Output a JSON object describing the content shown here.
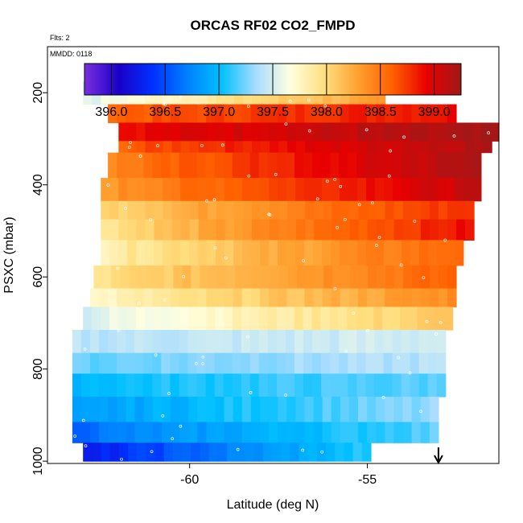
{
  "chart_data": {
    "type": "heatmap",
    "title": "ORCAS RF02 CO2_FMPD",
    "flights_note": "Flts: 2",
    "date_note": "MMDD: 0118",
    "xlabel": "Latitude (deg N)",
    "ylabel": "PSXC (mbar)",
    "xlim": [
      -64.0,
      -51.3
    ],
    "ylim": [
      1005,
      100
    ],
    "x_ticks": [
      -60,
      -55
    ],
    "x_tick_labels": [
      "-60",
      "-55"
    ],
    "y_ticks": [
      200,
      400,
      600,
      800,
      1000
    ],
    "y_tick_labels": [
      "200",
      "400",
      "600",
      "800",
      "1000"
    ],
    "colorbar": {
      "min": 395.75,
      "max": 399.25,
      "ticks": [
        396.0,
        396.5,
        397.0,
        397.5,
        398.0,
        398.5,
        399.0
      ],
      "tick_labels": [
        "396.0",
        "396.5",
        "397.0",
        "397.5",
        "398.0",
        "398.5",
        "399.0"
      ],
      "colors": [
        "#7b2fe0",
        "#1a00c8",
        "#0030ff",
        "#0080ff",
        "#00c0ff",
        "#a8dcff",
        "#ffffe0",
        "#ffe080",
        "#ffa030",
        "#ff6000",
        "#e80000",
        "#a01818"
      ]
    },
    "marker_latitude": -53.0,
    "bands": [
      {
        "p_top": 175,
        "p_bot": 200,
        "x_start": -63.0,
        "x_end": -54.5,
        "v_start": 397.4,
        "v_end": 398.3
      },
      {
        "p_top": 200,
        "p_bot": 225,
        "x_start": -63.0,
        "x_end": -54.5,
        "v_start": 397.5,
        "v_end": 398.3
      },
      {
        "p_top": 225,
        "p_bot": 265,
        "x_start": -62.3,
        "x_end": -52.5,
        "v_start": 398.6,
        "v_end": 398.9
      },
      {
        "p_top": 265,
        "p_bot": 305,
        "x_start": -62.0,
        "x_end": -51.3,
        "v_start": 398.9,
        "v_end": 399.2
      },
      {
        "p_top": 305,
        "p_bot": 330,
        "x_start": -62.0,
        "x_end": -51.5,
        "v_start": 398.6,
        "v_end": 399.2
      },
      {
        "p_top": 330,
        "p_bot": 385,
        "x_start": -62.3,
        "x_end": -51.8,
        "v_start": 398.4,
        "v_end": 399.2
      },
      {
        "p_top": 385,
        "p_bot": 435,
        "x_start": -62.5,
        "x_end": -51.8,
        "v_start": 398.3,
        "v_end": 399.1
      },
      {
        "p_top": 435,
        "p_bot": 475,
        "x_start": -62.5,
        "x_end": -52.0,
        "v_start": 398.0,
        "v_end": 398.8
      },
      {
        "p_top": 475,
        "p_bot": 520,
        "x_start": -62.5,
        "x_end": -52.0,
        "v_start": 397.9,
        "v_end": 398.9
      },
      {
        "p_top": 520,
        "p_bot": 575,
        "x_start": -62.5,
        "x_end": -52.3,
        "v_start": 397.8,
        "v_end": 398.6
      },
      {
        "p_top": 575,
        "p_bot": 625,
        "x_start": -62.7,
        "x_end": -52.5,
        "v_start": 397.9,
        "v_end": 398.6
      },
      {
        "p_top": 625,
        "p_bot": 665,
        "x_start": -62.8,
        "x_end": -52.5,
        "v_start": 397.7,
        "v_end": 398.4
      },
      {
        "p_top": 665,
        "p_bot": 715,
        "x_start": -63.0,
        "x_end": -52.6,
        "v_start": 397.5,
        "v_end": 398.1
      },
      {
        "p_top": 715,
        "p_bot": 765,
        "x_start": -63.3,
        "x_end": -52.8,
        "v_start": 397.4,
        "v_end": 397.5
      },
      {
        "p_top": 765,
        "p_bot": 810,
        "x_start": -63.3,
        "x_end": -52.8,
        "v_start": 397.2,
        "v_end": 397.4
      },
      {
        "p_top": 810,
        "p_bot": 860,
        "x_start": -63.3,
        "x_end": -52.8,
        "v_start": 397.0,
        "v_end": 397.2
      },
      {
        "p_top": 860,
        "p_bot": 915,
        "x_start": -63.3,
        "x_end": -53.0,
        "v_start": 396.8,
        "v_end": 397.3
      },
      {
        "p_top": 915,
        "p_bot": 960,
        "x_start": -63.3,
        "x_end": -53.0,
        "v_start": 396.6,
        "v_end": 397.2
      },
      {
        "p_top": 960,
        "p_bot": 1000,
        "x_start": -63.0,
        "x_end": -54.9,
        "v_start": 396.2,
        "v_end": 397.1
      }
    ]
  }
}
